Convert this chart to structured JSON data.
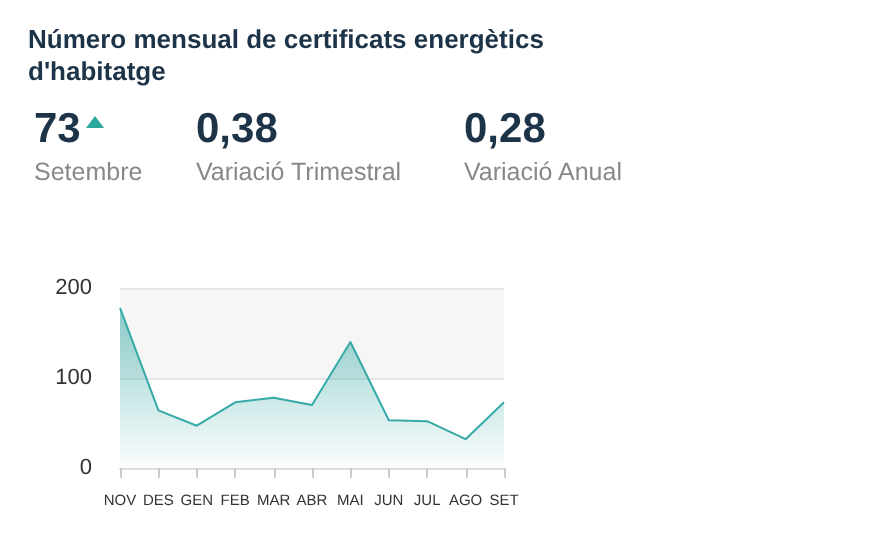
{
  "chart_data": {
    "type": "area",
    "title": "Número mensual de certificats energètics d'habitatge",
    "annotations": [
      "73",
      "Setembre",
      "0,38",
      "Variació Trimestral",
      "0,28",
      "Variació Anual"
    ],
    "categories": [
      "NOV",
      "DES",
      "GEN",
      "FEB",
      "MAR",
      "ABR",
      "MAI",
      "JUN",
      "JUL",
      "AGO",
      "SET"
    ],
    "values": [
      178,
      64,
      47,
      73,
      78,
      70,
      140,
      53,
      52,
      32,
      73
    ],
    "color": "#36aaa6",
    "bands": [
      {
        "axis": "y",
        "from": 100,
        "to": 200,
        "color": "#f6f6f6"
      }
    ],
    "ylim": [
      0,
      200
    ],
    "yticks": [
      0,
      100,
      200
    ],
    "grid": "y",
    "marker": "none"
  }
}
